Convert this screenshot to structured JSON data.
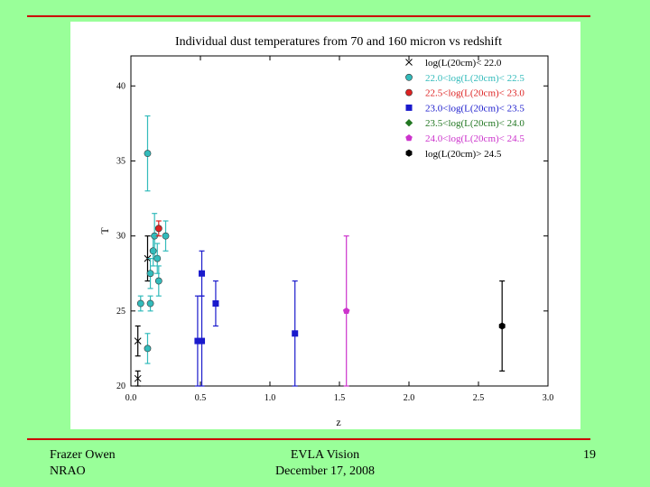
{
  "footer": {
    "author": "Frazer Owen",
    "institution": "NRAO",
    "talk_title": "EVLA Vision",
    "date": "December 17, 2008",
    "page_number": "19"
  },
  "colors": {
    "background": "#99ff99",
    "rule": "#cc0000"
  },
  "chart_data": {
    "type": "scatter",
    "title": "Individual dust temperatures from 70 and 160 micron vs redshift",
    "xlabel": "z",
    "ylabel": "T",
    "xlim": [
      0.0,
      3.0
    ],
    "ylim": [
      20,
      42
    ],
    "xticks": [
      "0.0",
      "0.5",
      "1.0",
      "1.5",
      "2.0",
      "2.5",
      "3.0"
    ],
    "yticks": [
      "20",
      "25",
      "30",
      "35",
      "40"
    ],
    "legend_position": "top-right",
    "series": [
      {
        "name": "log(L(20cm)< 22.0",
        "color": "#000000",
        "marker": "x",
        "points": [
          {
            "x": 0.05,
            "y": 20.5,
            "err": 0.5
          },
          {
            "x": 0.05,
            "y": 23.0,
            "err": 1.0
          },
          {
            "x": 0.12,
            "y": 28.5,
            "err": 1.5
          }
        ]
      },
      {
        "name": "22.0<log(L(20cm)< 22.5",
        "color": "#33bbbb",
        "marker": "circle",
        "points": [
          {
            "x": 0.12,
            "y": 35.5,
            "err": 2.5
          },
          {
            "x": 0.07,
            "y": 25.5,
            "err": 0.5
          },
          {
            "x": 0.14,
            "y": 25.5,
            "err": 0.5
          },
          {
            "x": 0.14,
            "y": 27.5,
            "err": 1.0
          },
          {
            "x": 0.16,
            "y": 29.0,
            "err": 1.0
          },
          {
            "x": 0.17,
            "y": 30.0,
            "err": 1.5
          },
          {
            "x": 0.19,
            "y": 28.5,
            "err": 1.0
          },
          {
            "x": 0.2,
            "y": 27.0,
            "err": 1.0
          },
          {
            "x": 0.25,
            "y": 30.0,
            "err": 1.0
          },
          {
            "x": 0.12,
            "y": 22.5,
            "err": 1.0
          }
        ]
      },
      {
        "name": "22.5<log(L(20cm)< 23.0",
        "color": "#dd2222",
        "marker": "circle",
        "points": [
          {
            "x": 0.2,
            "y": 30.5,
            "err": 0.5
          }
        ]
      },
      {
        "name": "23.0<log(L(20cm)< 23.5",
        "color": "#1a1acc",
        "marker": "square",
        "points": [
          {
            "x": 0.51,
            "y": 27.5,
            "err": 1.5
          },
          {
            "x": 0.48,
            "y": 23.0,
            "err": 3.0
          },
          {
            "x": 0.51,
            "y": 23.0,
            "err": 3.0
          },
          {
            "x": 0.61,
            "y": 25.5,
            "err": 1.5
          },
          {
            "x": 1.18,
            "y": 23.5,
            "err": 3.5
          }
        ]
      },
      {
        "name": "23.5<log(L(20cm)< 24.0",
        "color": "#227722",
        "marker": "diamond",
        "points": []
      },
      {
        "name": "24.0<log(L(20cm)< 24.5",
        "color": "#cc33cc",
        "marker": "pentagon",
        "points": [
          {
            "x": 1.55,
            "y": 25.0,
            "err": 5.0
          }
        ]
      },
      {
        "name": "log(L(20cm)> 24.5",
        "color": "#000000",
        "marker": "hexagon",
        "points": [
          {
            "x": 2.67,
            "y": 24.0,
            "err": 3.0
          }
        ]
      }
    ]
  }
}
